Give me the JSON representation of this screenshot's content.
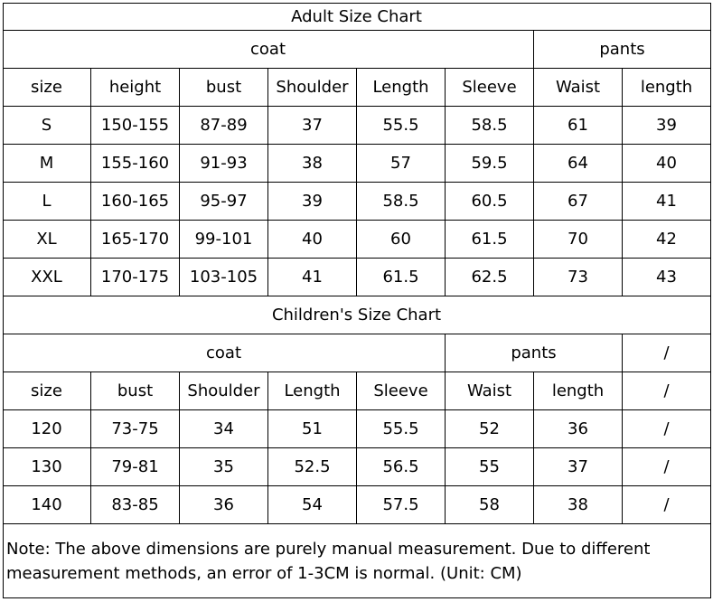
{
  "adult": {
    "title": "Adult Size Chart",
    "groups": [
      "coat",
      "pants"
    ],
    "header": [
      "size",
      "height",
      "bust",
      "Shoulder",
      "Length",
      "Sleeve",
      "Waist",
      "length"
    ],
    "rows": [
      [
        "S",
        "150-155",
        "87-89",
        37,
        55.5,
        58.5,
        61,
        39
      ],
      [
        "M",
        "155-160",
        "91-93",
        38,
        57,
        59.5,
        64,
        40
      ],
      [
        "L",
        "160-165",
        "95-97",
        39,
        58.5,
        60.5,
        67,
        41
      ],
      [
        "XL",
        "165-170",
        "99-101",
        40,
        60,
        61.5,
        70,
        42
      ],
      [
        "XXL",
        "170-175",
        "103-105",
        41,
        61.5,
        62.5,
        73,
        43
      ]
    ]
  },
  "children": {
    "title": "Children's Size Chart",
    "groups": [
      "coat",
      "pants",
      "/"
    ],
    "header": [
      "size",
      "bust",
      "Shoulder",
      "Length",
      "Sleeve",
      "Waist",
      "length",
      "/"
    ],
    "rows": [
      [
        120,
        "73-75",
        34,
        51,
        55.5,
        52,
        36,
        "/"
      ],
      [
        130,
        "79-81",
        35,
        52.5,
        56.5,
        55,
        37,
        "/"
      ],
      [
        140,
        "83-85",
        36,
        54,
        57.5,
        58,
        38,
        "/"
      ]
    ]
  },
  "note": "Note: The above dimensions are purely manual measurement. Due to different measurement methods, an error of 1-3CM is normal. (Unit: CM)"
}
